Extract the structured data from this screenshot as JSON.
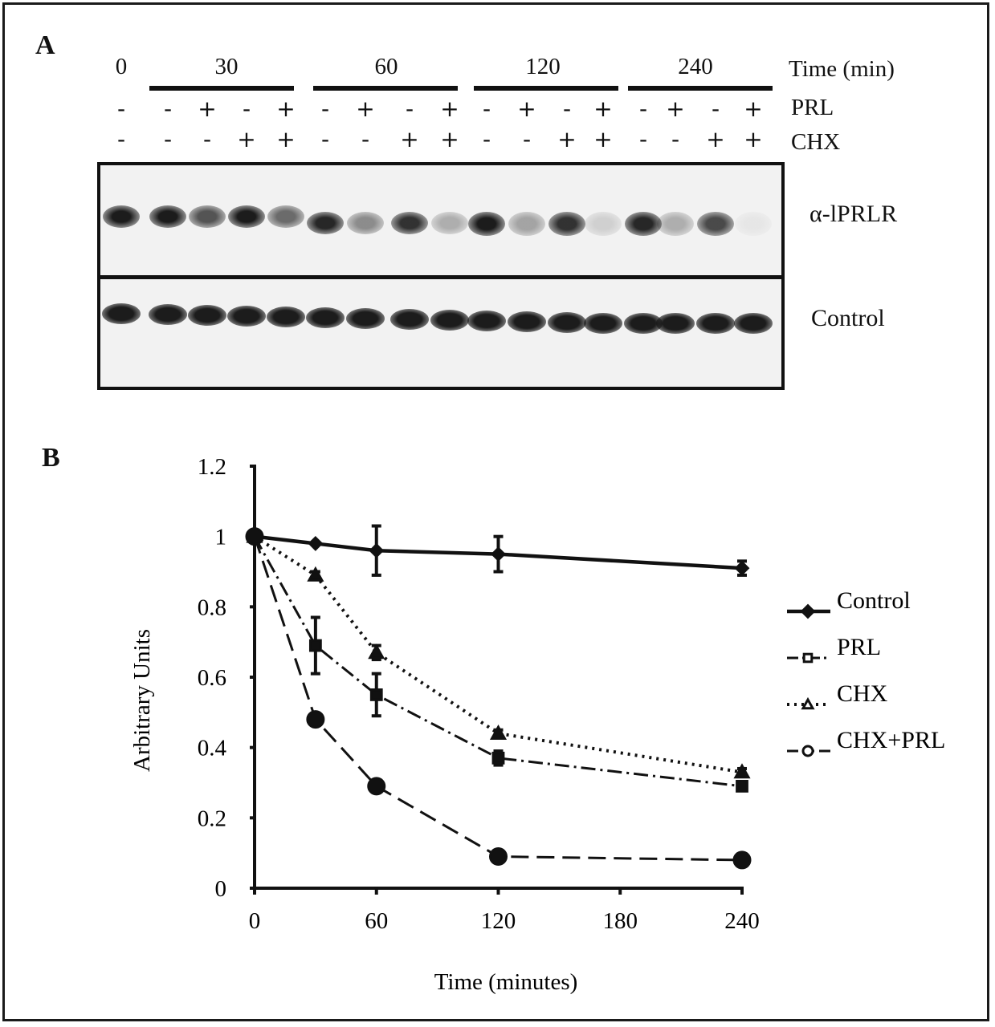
{
  "panel_a": {
    "letter": "A",
    "time_label": "Time (min)",
    "time_points": [
      "0",
      "30",
      "60",
      "120",
      "240"
    ],
    "row_labels": {
      "prl": "PRL",
      "chx": "CHX"
    },
    "prl_signs": [
      "-",
      "-",
      "+",
      "-",
      "+",
      "-",
      "+",
      "-",
      "+",
      "-",
      "+",
      "-",
      "+",
      "-",
      "+",
      "-",
      "+"
    ],
    "chx_signs": [
      "-",
      "-",
      "-",
      "+",
      "+",
      "-",
      "-",
      "+",
      "+",
      "-",
      "-",
      "+",
      "+",
      "-",
      "-",
      "+",
      "+"
    ],
    "blot_labels": {
      "receptor": "α-lPRLR",
      "control": "Control"
    },
    "receptor_band_intensity": [
      0.95,
      0.95,
      0.7,
      0.95,
      0.6,
      0.9,
      0.45,
      0.85,
      0.3,
      0.95,
      0.35,
      0.85,
      0.15,
      0.9,
      0.3,
      0.75,
      0.05
    ],
    "control_band_intensity": [
      0.95,
      0.95,
      0.95,
      0.95,
      0.95,
      0.95,
      0.95,
      0.95,
      0.95,
      0.95,
      0.95,
      0.95,
      0.95,
      0.95,
      0.95,
      0.95,
      0.95
    ],
    "colors": {
      "band": "#111111",
      "membrane": "#f2f2f2",
      "border": "#111111"
    }
  },
  "panel_b": {
    "letter": "B"
  },
  "chart_data": {
    "type": "line",
    "xlabel": "Time (minutes)",
    "ylabel": "Arbitrary Units",
    "xlim": [
      0,
      240
    ],
    "ylim": [
      0,
      1.2
    ],
    "xticks": [
      0,
      60,
      120,
      180,
      240
    ],
    "yticks": [
      0,
      0.2,
      0.4,
      0.6,
      0.8,
      1,
      1.2
    ],
    "xtick_labels": [
      "0",
      "60",
      "120",
      "180",
      "240"
    ],
    "ytick_labels": [
      "0",
      "0.2",
      "0.4",
      "0.6",
      "0.8",
      "1",
      "1.2"
    ],
    "grid": false,
    "legend_position": "right",
    "series": [
      {
        "name": "Control",
        "marker": "diamond",
        "line": "solid",
        "x": [
          0,
          30,
          60,
          120,
          240
        ],
        "y": [
          1.0,
          0.98,
          0.96,
          0.95,
          0.91
        ],
        "error": [
          0,
          0,
          0.07,
          0.05,
          0.02
        ]
      },
      {
        "name": "PRL",
        "marker": "square",
        "line": "dashdot",
        "x": [
          0,
          30,
          60,
          120,
          240
        ],
        "y": [
          1.0,
          0.69,
          0.55,
          0.37,
          0.29
        ],
        "error": [
          0,
          0.08,
          0.06,
          0.02,
          0.01
        ]
      },
      {
        "name": "CHX",
        "marker": "triangle",
        "line": "dotted",
        "x": [
          0,
          30,
          60,
          120,
          240
        ],
        "y": [
          1.0,
          0.89,
          0.67,
          0.44,
          0.33
        ],
        "error": [
          0,
          0.01,
          0.02,
          0.01,
          0.01
        ]
      },
      {
        "name": "CHX+PRL",
        "marker": "circle",
        "line": "dashed",
        "x": [
          0,
          30,
          60,
          120,
          240
        ],
        "y": [
          1.0,
          0.48,
          0.29,
          0.09,
          0.08
        ],
        "error": [
          0,
          0,
          0,
          0,
          0
        ]
      }
    ]
  }
}
